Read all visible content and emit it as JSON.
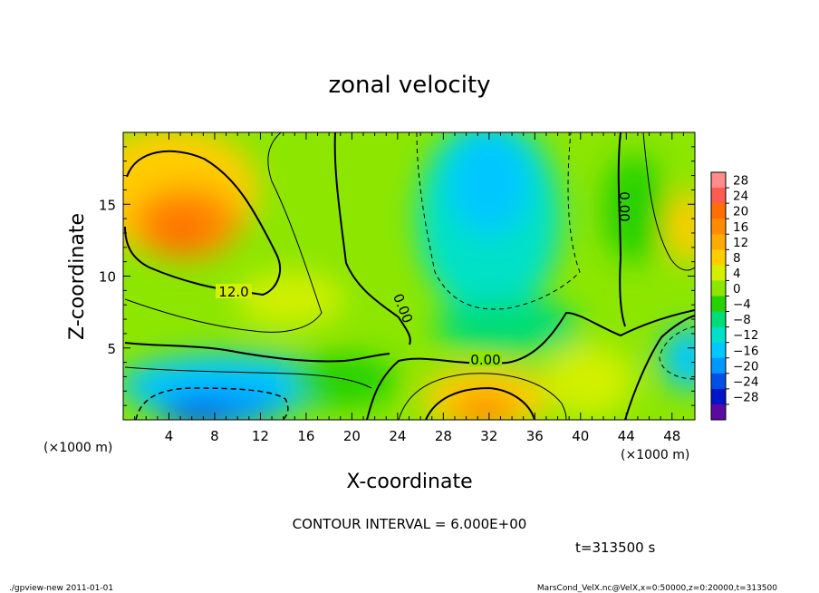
{
  "chart_data": {
    "type": "heatmap",
    "title": "zonal velocity",
    "xlabel": "X-coordinate",
    "ylabel": "Z-coordinate",
    "x_units": "(×1000 m)",
    "y_units": "(×1000 m)",
    "xlim": [
      0,
      50
    ],
    "ylim": [
      0,
      20
    ],
    "x_ticks": [
      4,
      8,
      12,
      16,
      20,
      24,
      28,
      32,
      36,
      40,
      44,
      48
    ],
    "y_ticks": [
      5,
      10,
      15
    ],
    "contour_interval_text": "CONTOUR INTERVAL = 6.000E+00",
    "time_text": "t=313500 s",
    "contour_labels": [
      "12.0",
      "0.00",
      "0.00",
      "0.00"
    ],
    "colorbar": {
      "levels": [
        28,
        24,
        20,
        16,
        12,
        8,
        4,
        0,
        -4,
        -8,
        -12,
        -16,
        -20,
        -24,
        -28
      ],
      "level_labels": [
        "28",
        "24",
        "20",
        "16",
        "12",
        "8",
        "4",
        "0",
        "−4",
        "−8",
        "−12",
        "−16",
        "−20",
        "−24",
        "−28"
      ],
      "colors": [
        "#ff8c8c",
        "#ff5a50",
        "#ff6e00",
        "#ff8c00",
        "#ffaa00",
        "#ffcd00",
        "#d2f000",
        "#8ce600",
        "#28d200",
        "#00dc78",
        "#00e1c8",
        "#00c8ff",
        "#0096ff",
        "#0050e6",
        "#0014c8",
        "#5a0aa0"
      ]
    },
    "features": [
      {
        "x": 6,
        "z": 13.5,
        "value": 18
      },
      {
        "x": 9,
        "z": 1.0,
        "value": -14
      },
      {
        "x": 31,
        "z": 1.2,
        "value": 16
      },
      {
        "x": 33,
        "z": 12,
        "value": -10
      },
      {
        "x": 49,
        "z": 4,
        "value": -10
      },
      {
        "x": 49,
        "z": 14,
        "value": 12
      }
    ]
  },
  "footer": {
    "left": "./gpview-new   2011-01-01",
    "right": "MarsCond_VelX.nc@VelX,x=0:50000,z=0:20000,t=313500"
  }
}
